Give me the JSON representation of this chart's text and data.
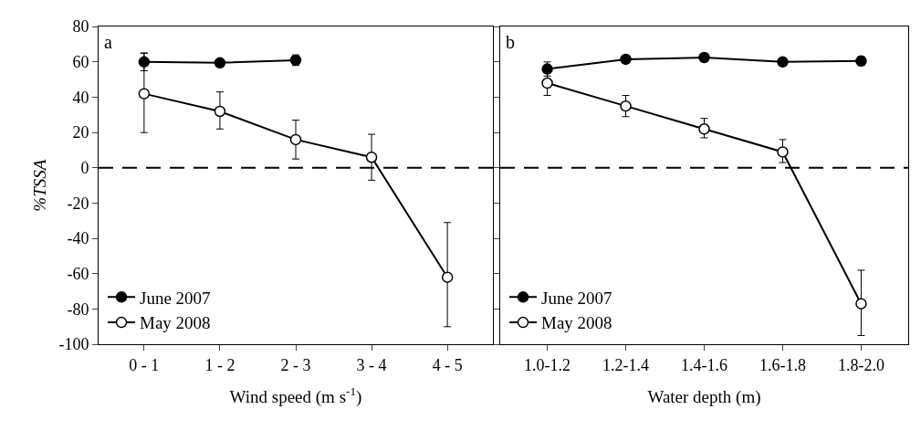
{
  "chart_data": [
    {
      "type": "line",
      "xlabel": "Wind speed (m s$^{-1}$)",
      "ylabel": "%TSSA",
      "categories": [
        "0 - 1",
        "1 - 2",
        "2 - 3",
        "3 - 4",
        "4 - 5"
      ],
      "ylim": [
        -100,
        80
      ],
      "yticks": [
        -100,
        -80,
        -60,
        -40,
        -20,
        0,
        20,
        40,
        60,
        80
      ],
      "annotations": [
        "a"
      ],
      "marker": "circle",
      "line_style": "solid",
      "legend": "bottom left",
      "ref_lines": [
        {
          "axis": "y",
          "value": 0,
          "color": "#000000",
          "line_style": "dashed"
        }
      ],
      "series": [
        {
          "name": "June 2007",
          "color": "#000000",
          "values": [
            60,
            59.5,
            61,
            null,
            null
          ],
          "errors": [
            5,
            2,
            3,
            null,
            null
          ]
        },
        {
          "name": "May 2008",
          "color": "#ffffff",
          "values": [
            42,
            32,
            16,
            6,
            -62
          ],
          "errors": [
            [
              20,
              65
            ],
            [
              22,
              43
            ],
            [
              5,
              27
            ],
            [
              -7,
              19
            ],
            [
              -90,
              -31
            ]
          ]
        }
      ]
    },
    {
      "type": "line",
      "xlabel": "Water depth (m)",
      "categories": [
        "1.0-1.2",
        "1.2-1.4",
        "1.4-1.6",
        "1.6-1.8",
        "1.8-2.0"
      ],
      "ylim": [
        -100,
        80
      ],
      "yticks": [
        -100,
        -80,
        -60,
        -40,
        -20,
        0,
        20,
        40,
        60,
        80
      ],
      "tick_labels": "x",
      "annotations": [
        "b"
      ],
      "marker": "circle",
      "line_style": "solid",
      "legend": "bottom left",
      "ref_lines": [
        {
          "axis": "y",
          "value": 0,
          "color": "#000000",
          "line_style": "dashed"
        }
      ],
      "series": [
        {
          "name": "June 2007",
          "color": "#000000",
          "values": [
            56,
            61.5,
            62.5,
            60,
            60.5
          ],
          "errors": [
            4,
            2,
            2,
            2,
            2.5
          ]
        },
        {
          "name": "May 2008",
          "color": "#ffffff",
          "values": [
            48,
            35,
            22,
            9,
            -77
          ],
          "errors": [
            [
              41,
              54
            ],
            [
              29,
              41
            ],
            [
              17,
              28
            ],
            [
              3,
              16
            ],
            [
              -95,
              -58
            ]
          ]
        }
      ]
    }
  ]
}
